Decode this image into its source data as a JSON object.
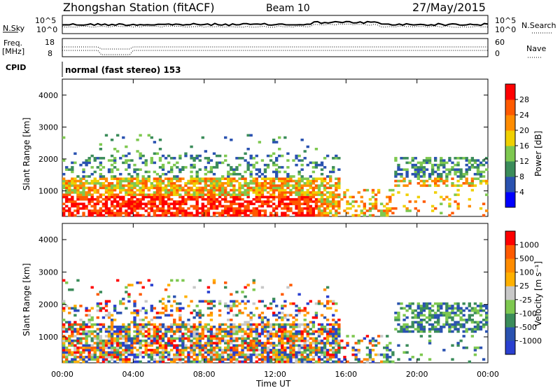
{
  "header": {
    "station": "Zhongshan Station (fitACF)",
    "beam": "Beam 10",
    "date": "27/May/2015"
  },
  "params": {
    "nsky_label": "N.Sky",
    "nsearch_label": "N.Search",
    "freq_label": "Freq.",
    "freq_unit": "[MHz]",
    "nave_label": "Nave",
    "cpid_label": "CPID",
    "cpid_value": "normal (fast stereo) 153",
    "noise_ticks_left": [
      "10^5",
      "10^0"
    ],
    "noise_ticks_right": [
      "10^5",
      "10^0"
    ],
    "freq_ticks": [
      "18",
      "8"
    ],
    "nave_ticks": [
      "60",
      "0"
    ]
  },
  "colors": {
    "power_scale": [
      "#0000ff",
      "#2a52b0",
      "#3b8c5a",
      "#7ec850",
      "#f0d000",
      "#ff8c00",
      "#ff5a00",
      "#ff0000"
    ],
    "velocity_scale": [
      "#ff0000",
      "#ff5a00",
      "#ff8c00",
      "#ffb000",
      "#c8c8c8",
      "#7ec850",
      "#3b8c5a",
      "#2a52b0",
      "#2a40d0"
    ]
  },
  "chart_data": [
    {
      "type": "heatmap",
      "name": "power",
      "ylabel": "Slant Range [km]",
      "yticks": [
        "1000",
        "2000",
        "3000",
        "4000"
      ],
      "ylim": [
        200,
        4500
      ],
      "colorbar_label": "Power [dB]",
      "colorbar_ticks": [
        "4",
        "8",
        "12",
        "16",
        "20",
        "24",
        "28"
      ],
      "colorbar_range": [
        0,
        30
      ]
    },
    {
      "type": "heatmap",
      "name": "velocity",
      "ylabel": "Slant Range [km]",
      "yticks": [
        "1000",
        "2000",
        "3000",
        "4000"
      ],
      "ylim": [
        200,
        4500
      ],
      "colorbar_label": "Velocity [m s⁻¹]",
      "colorbar_ticks": [
        "1000",
        "500",
        "100",
        "25",
        "-25",
        "-100",
        "-500",
        "-1000"
      ]
    }
  ],
  "xaxis": {
    "label": "Time UT",
    "ticks": [
      "00:00",
      "04:00",
      "08:00",
      "12:00",
      "16:00",
      "20:00",
      "00:00"
    ]
  }
}
